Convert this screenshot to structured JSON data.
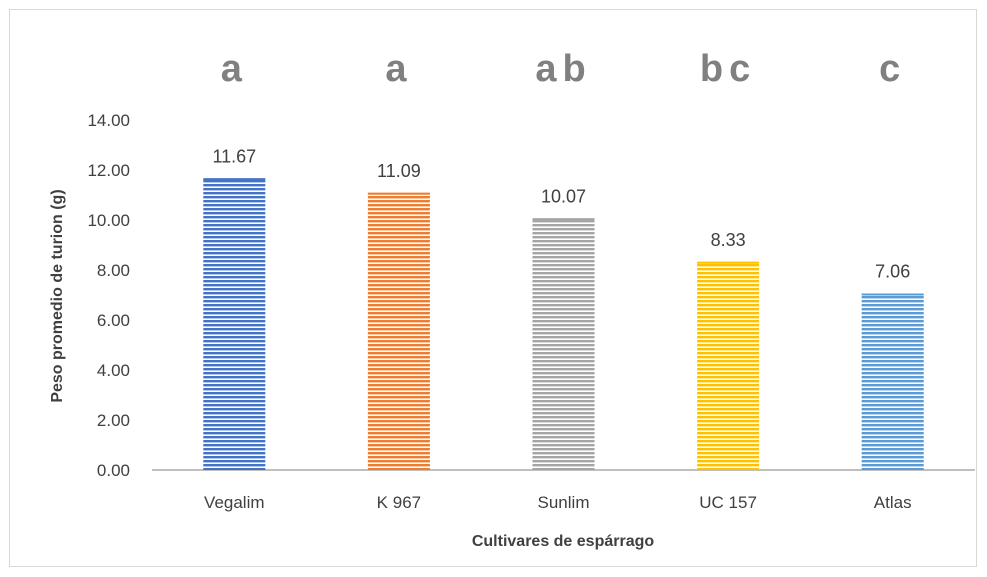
{
  "chart_data": {
    "type": "bar",
    "title": "",
    "xlabel": "Cultivares de espárrago",
    "ylabel": "Peso promedio de turion (g)",
    "categories": [
      "Vegalim",
      "K 967",
      "Sunlim",
      "UC 157",
      "Atlas"
    ],
    "values": [
      11.67,
      11.09,
      10.07,
      8.33,
      7.06
    ],
    "value_labels": [
      "11.67",
      "11.09",
      "10.07",
      "8.33",
      "7.06"
    ],
    "significance_letters": [
      "a",
      "a",
      "ab",
      "bc",
      "c"
    ],
    "colors": [
      "#4472c4",
      "#ed7d31",
      "#a5a5a5",
      "#ffc000",
      "#5b9bd5"
    ],
    "ylim": [
      0,
      14
    ],
    "yticks": [
      "0.00",
      "2.00",
      "4.00",
      "6.00",
      "8.00",
      "10.00",
      "12.00",
      "14.00"
    ],
    "grid": false,
    "legend": "none",
    "bar_pattern": "horizontal-stripes"
  }
}
